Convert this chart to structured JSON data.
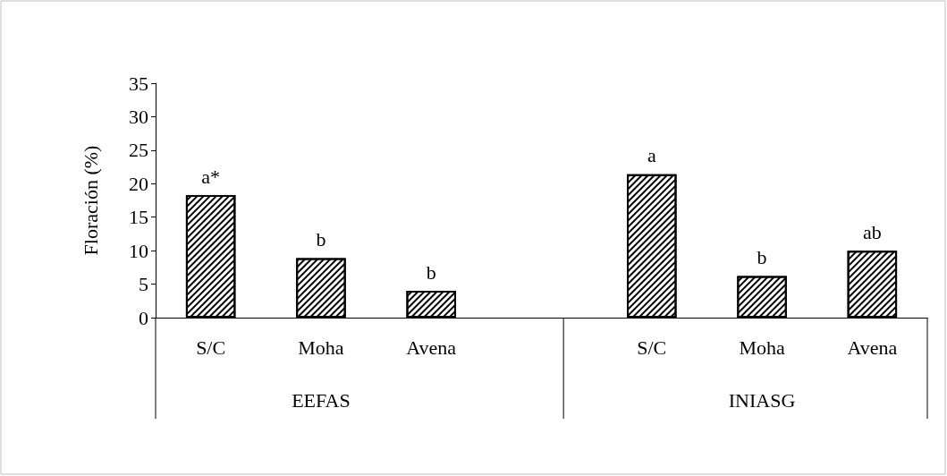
{
  "chart_data": {
    "type": "bar",
    "ylabel": "Floración (%)",
    "categories": [
      "S/C",
      "Moha",
      "Avena",
      null,
      "S/C",
      "Moha",
      "Avena"
    ],
    "values": [
      18.3,
      8.9,
      4.0,
      null,
      21.4,
      6.2,
      10.0
    ],
    "value_labels": [
      "a*",
      "b",
      "b",
      null,
      "a",
      "b",
      "ab"
    ],
    "color": "#000000",
    "ylim": [
      0,
      35
    ],
    "yticks": [
      0,
      5,
      10,
      15,
      20,
      25,
      30,
      35
    ],
    "annotations": [
      "EEFAS",
      "INIASG"
    ]
  }
}
